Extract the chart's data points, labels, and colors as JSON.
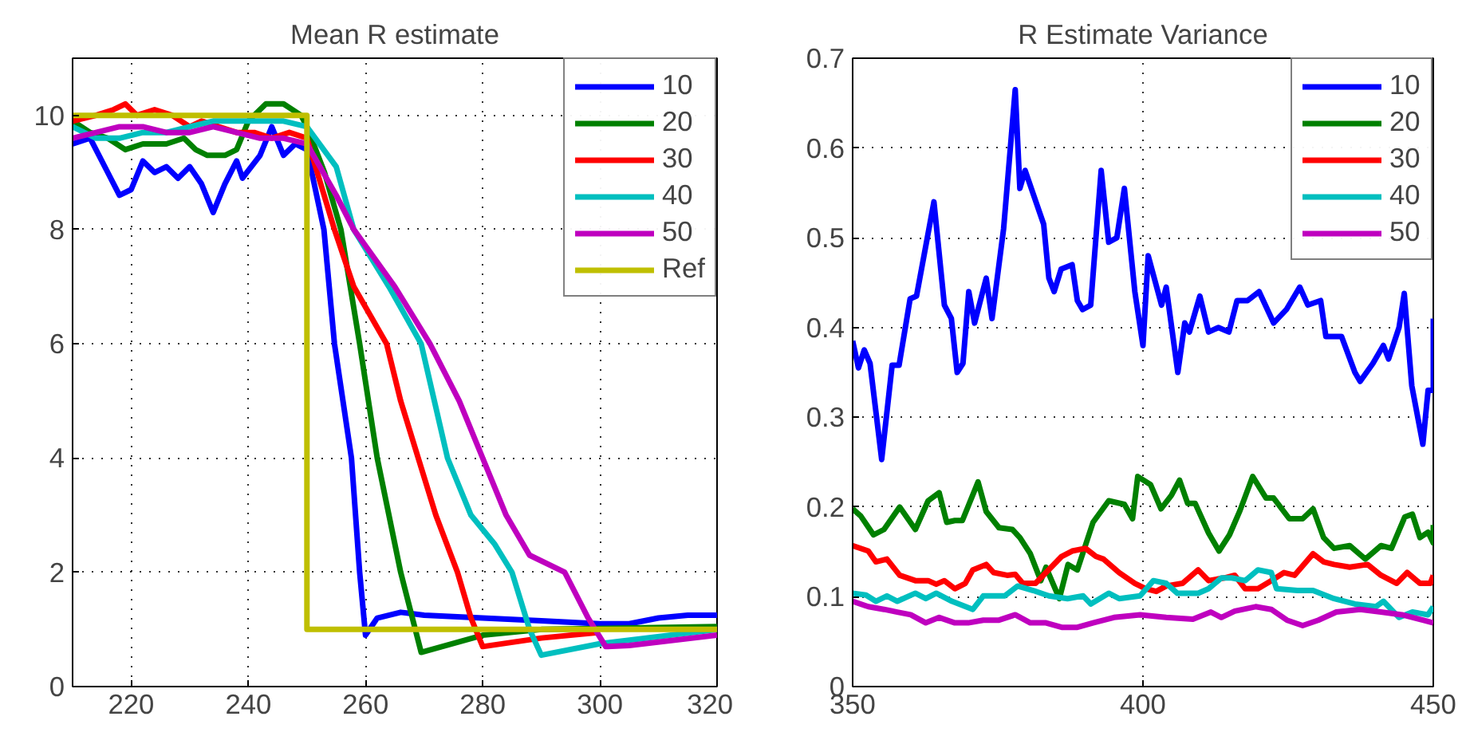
{
  "chart_data": [
    {
      "type": "line",
      "title": "Mean R estimate",
      "xlim": [
        210,
        320
      ],
      "ylim": [
        0,
        11
      ],
      "xticks": [
        220,
        240,
        260,
        280,
        300,
        320
      ],
      "yticks": [
        0,
        2,
        4,
        6,
        8,
        10
      ],
      "grid": true,
      "legend": "top right",
      "series": [
        {
          "name": "10",
          "color": "#0000ff",
          "x": [
            210,
            213,
            216,
            218,
            220,
            222,
            224,
            226,
            228,
            230,
            232,
            234,
            236,
            238,
            239,
            242,
            244,
            246,
            248,
            250,
            252.9,
            254.7,
            257.6,
            259,
            260,
            262,
            266,
            270,
            280,
            290,
            300,
            305,
            310,
            315,
            320
          ],
          "values": [
            9.5,
            9.6,
            9.0,
            8.6,
            8.7,
            9.2,
            9.0,
            9.1,
            8.9,
            9.1,
            8.8,
            8.3,
            8.8,
            9.2,
            8.9,
            9.3,
            9.8,
            9.3,
            9.5,
            9.4,
            8,
            6,
            4,
            2,
            0.9,
            1.2,
            1.3,
            1.25,
            1.2,
            1.15,
            1.1,
            1.1,
            1.2,
            1.25,
            1.25
          ]
        },
        {
          "name": "20",
          "color": "#008000",
          "x": [
            210,
            213,
            216,
            219,
            222,
            226,
            229,
            231,
            233,
            236,
            238,
            240,
            243,
            246,
            249,
            250,
            253,
            255.8,
            259,
            262,
            266,
            269.5,
            280,
            290,
            320
          ],
          "values": [
            9.9,
            9.7,
            9.6,
            9.4,
            9.5,
            9.5,
            9.6,
            9.4,
            9.3,
            9.3,
            9.4,
            9.9,
            10.2,
            10.2,
            10.0,
            9.8,
            9,
            8,
            6,
            4,
            2,
            0.6,
            0.9,
            1.0,
            1.05
          ]
        },
        {
          "name": "30",
          "color": "#ff0000",
          "x": [
            210,
            214,
            217,
            219,
            221,
            224,
            227,
            230,
            232,
            235,
            238,
            241,
            244,
            247,
            250,
            254.7,
            258,
            263.6,
            266,
            269,
            272,
            275.7,
            278,
            280,
            290,
            300
          ],
          "values": [
            9.9,
            10.0,
            10.1,
            10.2,
            10.0,
            10.1,
            10.0,
            9.8,
            9.9,
            9.8,
            9.7,
            9.7,
            9.6,
            9.7,
            9.6,
            8,
            7,
            6,
            5,
            4,
            3,
            2,
            1.2,
            0.7,
            0.85,
            0.95
          ]
        },
        {
          "name": "40",
          "color": "#00bfbf",
          "x": [
            210,
            214,
            218,
            222,
            226,
            230,
            234,
            238,
            242,
            246,
            250,
            255,
            258,
            264,
            269.5,
            274,
            278,
            282,
            285,
            288,
            290,
            300,
            320
          ],
          "values": [
            9.8,
            9.6,
            9.6,
            9.7,
            9.7,
            9.8,
            9.9,
            9.9,
            9.9,
            9.9,
            9.8,
            9.1,
            8,
            7,
            6,
            4,
            3,
            2.5,
            2,
            1,
            0.55,
            0.75,
            1.0
          ]
        },
        {
          "name": "50",
          "color": "#bf00bf",
          "x": [
            210,
            214,
            218,
            222,
            226,
            230,
            234,
            238,
            242,
            246,
            250,
            255,
            258,
            265,
            271,
            276,
            280,
            284,
            288,
            294,
            298,
            301,
            305,
            320
          ],
          "values": [
            9.6,
            9.7,
            9.8,
            9.8,
            9.7,
            9.7,
            9.8,
            9.7,
            9.6,
            9.6,
            9.5,
            8.6,
            8,
            7,
            6,
            5,
            4,
            3,
            2.3,
            2,
            1.2,
            0.7,
            0.72,
            0.9
          ]
        },
        {
          "name": "Ref",
          "color": "#bfbf00",
          "x": [
            210,
            250,
            250,
            320
          ],
          "values": [
            10,
            10,
            1,
            1
          ]
        }
      ]
    },
    {
      "type": "line",
      "title": "R Estimate Variance",
      "xlim": [
        350,
        450
      ],
      "ylim": [
        0,
        0.7
      ],
      "xticks": [
        350,
        400,
        450
      ],
      "yticks": [
        0,
        0.1,
        0.2,
        0.3,
        0.4,
        0.5,
        0.6,
        0.7
      ],
      "grid": true,
      "legend": "top right",
      "series": [
        {
          "name": "10",
          "color": "#0000ff",
          "x": [
            350,
            351,
            352,
            353,
            355,
            356.8,
            358,
            359.9,
            361,
            364,
            365.8,
            367,
            368,
            369,
            370,
            371,
            373,
            374,
            376,
            378,
            378.8,
            379.7,
            382.9,
            383.8,
            384.7,
            385.9,
            387.8,
            388.7,
            389.6,
            391,
            392.8,
            394.1,
            395.5,
            396.8,
            398.6,
            400,
            400.9,
            403.2,
            404,
            406,
            407.2,
            408,
            409.8,
            411.3,
            413,
            414.8,
            416.2,
            418,
            420,
            422.5,
            424.7,
            427,
            428.4,
            430.6,
            431.5,
            434.2,
            436.5,
            437.4,
            439.6,
            441.4,
            442.3,
            444.1,
            445,
            446.3,
            448.2,
            449.1,
            450,
            450
          ],
          "values": [
            0.385,
            0.355,
            0.375,
            0.36,
            0.253,
            0.358,
            0.358,
            0.432,
            0.435,
            0.54,
            0.425,
            0.41,
            0.35,
            0.36,
            0.44,
            0.405,
            0.455,
            0.41,
            0.51,
            0.665,
            0.555,
            0.575,
            0.515,
            0.455,
            0.44,
            0.465,
            0.47,
            0.43,
            0.42,
            0.425,
            0.575,
            0.495,
            0.5,
            0.555,
            0.44,
            0.38,
            0.48,
            0.425,
            0.445,
            0.35,
            0.405,
            0.395,
            0.435,
            0.395,
            0.4,
            0.395,
            0.43,
            0.43,
            0.44,
            0.405,
            0.42,
            0.445,
            0.425,
            0.43,
            0.39,
            0.39,
            0.35,
            0.34,
            0.36,
            0.38,
            0.365,
            0.4,
            0.438,
            0.335,
            0.27,
            0.33,
            0.33,
            0.41
          ]
        },
        {
          "name": "20",
          "color": "#008000",
          "x": [
            350,
            351.4,
            353.6,
            355.4,
            358.1,
            360.8,
            363,
            364.9,
            366.2,
            367.6,
            368.9,
            371.6,
            373,
            375.2,
            377.5,
            378.8,
            380.6,
            382.4,
            383.3,
            385.6,
            387.1,
            388.7,
            391.4,
            394.1,
            396.8,
            398.2,
            399.1,
            401.3,
            403.1,
            404.9,
            406.3,
            407.7,
            409,
            411.3,
            413.1,
            414.9,
            416.7,
            418.9,
            421.2,
            422.5,
            425.2,
            427.5,
            429.3,
            431.1,
            432.9,
            435.6,
            438.3,
            441,
            442.8,
            445.1,
            446.4,
            447.7,
            449.1,
            450,
            450
          ],
          "values": [
            0.198,
            0.19,
            0.169,
            0.175,
            0.2,
            0.175,
            0.207,
            0.216,
            0.183,
            0.185,
            0.185,
            0.228,
            0.195,
            0.177,
            0.175,
            0.166,
            0.148,
            0.118,
            0.133,
            0.098,
            0.136,
            0.13,
            0.183,
            0.207,
            0.203,
            0.187,
            0.234,
            0.225,
            0.198,
            0.213,
            0.23,
            0.204,
            0.204,
            0.171,
            0.151,
            0.169,
            0.196,
            0.234,
            0.21,
            0.21,
            0.187,
            0.187,
            0.198,
            0.166,
            0.154,
            0.157,
            0.142,
            0.157,
            0.154,
            0.189,
            0.192,
            0.166,
            0.172,
            0.16,
            0.18
          ]
        },
        {
          "name": "30",
          "color": "#ff0000",
          "x": [
            350,
            352.7,
            354,
            355.9,
            358.1,
            360.8,
            363,
            364.4,
            365.8,
            367.6,
            369.4,
            370.7,
            373,
            374.3,
            376.6,
            378,
            379.3,
            381.5,
            384.2,
            386,
            387.8,
            390.1,
            391.9,
            393.2,
            395.9,
            398.6,
            400.5,
            402.3,
            404,
            406.8,
            409.5,
            411.3,
            414,
            415.8,
            417.6,
            419.8,
            422.1,
            424.3,
            426.1,
            429.3,
            431.1,
            432.9,
            435.6,
            438.7,
            441,
            443.7,
            445.5,
            447.7,
            449.5,
            450
          ],
          "values": [
            0.157,
            0.151,
            0.139,
            0.142,
            0.124,
            0.118,
            0.118,
            0.114,
            0.118,
            0.109,
            0.115,
            0.13,
            0.136,
            0.127,
            0.124,
            0.125,
            0.115,
            0.115,
            0.133,
            0.145,
            0.151,
            0.154,
            0.145,
            0.142,
            0.127,
            0.115,
            0.109,
            0.106,
            0.112,
            0.115,
            0.13,
            0.118,
            0.121,
            0.124,
            0.109,
            0.109,
            0.118,
            0.127,
            0.124,
            0.148,
            0.139,
            0.136,
            0.133,
            0.136,
            0.124,
            0.115,
            0.127,
            0.115,
            0.115,
            0.124
          ]
        },
        {
          "name": "40",
          "color": "#00bfbf",
          "x": [
            350,
            352.3,
            354,
            355.9,
            357.7,
            360.8,
            362.6,
            364.4,
            367.1,
            370.7,
            372.5,
            376.2,
            378.4,
            381.1,
            383.8,
            387,
            389.7,
            391,
            394.1,
            395.9,
            399.5,
            401.8,
            404,
            405.9,
            409.5,
            411.3,
            413.5,
            415.3,
            417.6,
            419.8,
            422.1,
            423,
            426.6,
            429.3,
            432.9,
            436.5,
            440.1,
            441.4,
            444.1,
            446.4,
            449.1,
            450
          ],
          "values": [
            0.104,
            0.102,
            0.095,
            0.101,
            0.095,
            0.104,
            0.098,
            0.104,
            0.095,
            0.086,
            0.101,
            0.101,
            0.112,
            0.107,
            0.101,
            0.098,
            0.101,
            0.092,
            0.104,
            0.098,
            0.101,
            0.118,
            0.115,
            0.104,
            0.104,
            0.109,
            0.121,
            0.121,
            0.118,
            0.13,
            0.127,
            0.109,
            0.107,
            0.107,
            0.098,
            0.092,
            0.089,
            0.095,
            0.077,
            0.083,
            0.08,
            0.089
          ]
        },
        {
          "name": "50",
          "color": "#bf00bf",
          "x": [
            350,
            352.7,
            355.4,
            357.7,
            360,
            362.6,
            364.9,
            367.6,
            369.9,
            372.5,
            375.2,
            378,
            380.6,
            383.3,
            386,
            388.7,
            391.4,
            395,
            399.5,
            404,
            408.6,
            411.7,
            413.5,
            415.8,
            419.4,
            422.1,
            424.8,
            427.5,
            430.2,
            433.3,
            437.4,
            441,
            444.6,
            448.2,
            450
          ],
          "values": [
            0.095,
            0.089,
            0.086,
            0.083,
            0.08,
            0.071,
            0.077,
            0.071,
            0.071,
            0.074,
            0.074,
            0.08,
            0.071,
            0.071,
            0.066,
            0.066,
            0.071,
            0.077,
            0.08,
            0.077,
            0.075,
            0.083,
            0.077,
            0.084,
            0.089,
            0.086,
            0.074,
            0.068,
            0.074,
            0.083,
            0.086,
            0.083,
            0.08,
            0.074,
            0.071
          ]
        }
      ]
    }
  ]
}
